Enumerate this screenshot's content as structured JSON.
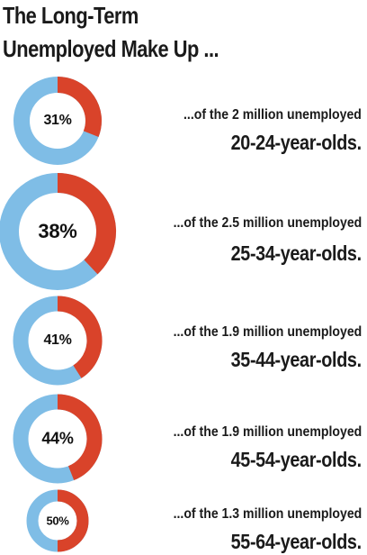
{
  "header": {
    "title_line1": "The Long-Term",
    "title_line2": "Unemployed Make Up ..."
  },
  "colors": {
    "long_term": "#d9432a",
    "remainder": "#7fbde6"
  },
  "chart_data": {
    "type": "pie",
    "title": "The Long-Term Unemployed Make Up ...",
    "items": [
      {
        "percent": 31,
        "percent_label": "31%",
        "line1": "...of the 2 million unemployed",
        "line2": "20-24-year-olds."
      },
      {
        "percent": 38,
        "percent_label": "38%",
        "line1": "...of the 2.5 million unemployed",
        "line2": "25-34-year-olds."
      },
      {
        "percent": 41,
        "percent_label": "41%",
        "line1": "...of the 1.9 million unemployed",
        "line2": "35-44-year-olds."
      },
      {
        "percent": 44,
        "percent_label": "44%",
        "line1": "...of the 1.9 million unemployed",
        "line2": "45-54-year-olds."
      },
      {
        "percent": 50,
        "percent_label": "50%",
        "line1": "...of the 1.3 million unemployed",
        "line2": "55-64-year-olds."
      }
    ]
  }
}
